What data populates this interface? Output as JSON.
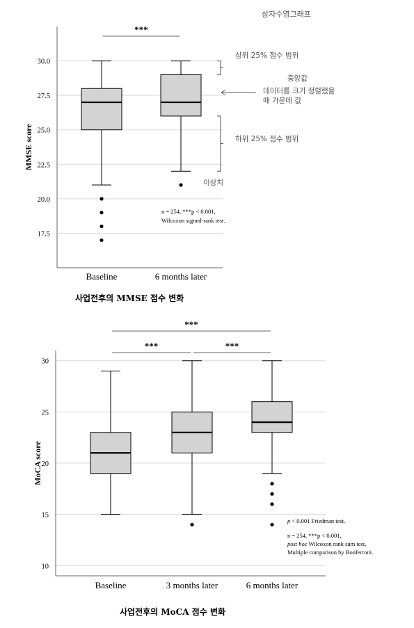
{
  "chart_data": [
    {
      "type": "box",
      "header_note": "상자수염그래프",
      "caption": "사업전후의 MMSE 점수 변화",
      "ylabel": "MMSE score",
      "xlabel": "",
      "ylim": [
        15.0,
        32.5
      ],
      "yticks": [
        "30.0",
        "27.5",
        "25.0",
        "22.5",
        "20.0",
        "17.5"
      ],
      "ytick_values": [
        30.0,
        27.5,
        25.0,
        22.5,
        20.0,
        17.5
      ],
      "categories": [
        "Baseline",
        "6 months later"
      ],
      "boxes": [
        {
          "whisker_low": 21,
          "q1": 25,
          "median": 27,
          "q3": 28,
          "whisker_high": 30,
          "outliers": [
            20,
            19,
            18,
            17
          ]
        },
        {
          "whisker_low": 22,
          "q1": 26,
          "median": 27,
          "q3": 29,
          "whisker_high": 30,
          "outliers": [
            21
          ]
        }
      ],
      "significance": [
        {
          "from": 0,
          "to": 1,
          "label": "***"
        }
      ],
      "annotations": {
        "upper": "상위 25% 점수 범위",
        "median_title": "중앙값",
        "median_desc1": "데이터를   크기   정렬했을",
        "median_desc2": "때 가운데 값",
        "lower": "하위 25% 점수 범위",
        "outlier": "이상치"
      },
      "note1": "n = 254, ***p < 0.001,",
      "note2": "Wilcoxon signed-rank test.",
      "grid": true
    },
    {
      "type": "box",
      "caption": "사업전후의 MoCA 점수 변화",
      "ylabel": "MoCA score",
      "xlabel": "",
      "ylim": [
        9,
        31
      ],
      "yticks": [
        "30",
        "25",
        "20",
        "15",
        "10"
      ],
      "ytick_values": [
        30,
        25,
        20,
        15,
        10
      ],
      "categories": [
        "Baseline",
        "3 months later",
        "6 months later"
      ],
      "boxes": [
        {
          "whisker_low": 15,
          "q1": 19,
          "median": 21,
          "q3": 23,
          "whisker_high": 29,
          "outliers": []
        },
        {
          "whisker_low": 15,
          "q1": 21,
          "median": 23,
          "q3": 25,
          "whisker_high": 30,
          "outliers": [
            14
          ]
        },
        {
          "whisker_low": 19,
          "q1": 23,
          "median": 24,
          "q3": 26,
          "whisker_high": 30,
          "outliers": [
            18,
            17,
            16,
            14
          ]
        }
      ],
      "significance": [
        {
          "from": 0,
          "to": 2,
          "label": "***"
        },
        {
          "from": 0,
          "to": 1,
          "label": "***"
        },
        {
          "from": 1,
          "to": 2,
          "label": "***"
        }
      ],
      "note1_p": "p",
      "note1_rest": " < 0.001 Friedman test.",
      "note2": "n = 254, ***p < 0.001,",
      "note3_italic": "post hoc",
      "note3_rest": " Wilcoxon rank sum test,",
      "note4": "Multiple comparison by Bonferroni.",
      "grid": true
    }
  ],
  "colors": {
    "box_fill": "#d3d3d3",
    "line": "#000000",
    "grid": "#d9d9d9",
    "annotation": "#555555",
    "bracket": "#666666"
  }
}
